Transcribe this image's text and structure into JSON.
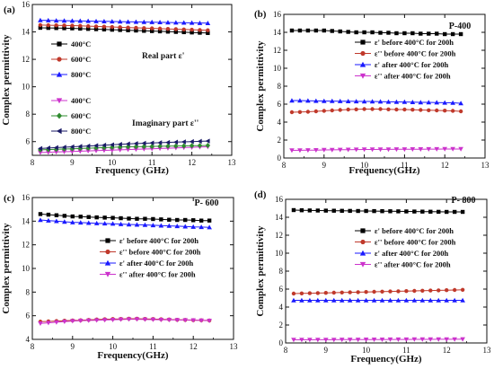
{
  "chart_data": [
    {
      "panel": "(a)",
      "type": "line",
      "xlabel": "Frequency (GHz)",
      "ylabel": "Complex permittivity",
      "xlim": [
        8,
        13
      ],
      "ylim": [
        5,
        16
      ],
      "xticks": [
        8,
        9,
        10,
        11,
        12,
        13
      ],
      "yticks": [
        6,
        8,
        10,
        12,
        14,
        16
      ],
      "x": [
        8.2,
        8.4,
        8.6,
        8.8,
        9.0,
        9.2,
        9.4,
        9.6,
        9.8,
        10.0,
        10.2,
        10.4,
        10.6,
        10.8,
        11.0,
        11.2,
        11.4,
        11.6,
        11.8,
        12.0,
        12.2,
        12.4
      ],
      "annotations": [
        "Real part ε'",
        "Imaginary part ε''"
      ],
      "series": [
        {
          "name": "400°C",
          "color": "#000000",
          "marker": "square",
          "values": [
            14.3,
            14.29,
            14.28,
            14.27,
            14.26,
            14.24,
            14.22,
            14.2,
            14.18,
            14.16,
            14.14,
            14.12,
            14.1,
            14.08,
            14.06,
            14.04,
            14.02,
            14.0,
            13.98,
            13.96,
            13.94,
            13.92
          ]
        },
        {
          "name": "600°C",
          "color": "#c0392b",
          "marker": "circle",
          "values": [
            14.5,
            14.49,
            14.48,
            14.47,
            14.46,
            14.44,
            14.42,
            14.4,
            14.38,
            14.36,
            14.34,
            14.32,
            14.3,
            14.28,
            14.26,
            14.24,
            14.22,
            14.2,
            14.18,
            14.16,
            14.14,
            14.12
          ]
        },
        {
          "name": "800°C",
          "color": "#1a1aff",
          "marker": "triangle-up",
          "values": [
            14.85,
            14.84,
            14.83,
            14.82,
            14.81,
            14.8,
            14.79,
            14.78,
            14.77,
            14.76,
            14.75,
            14.74,
            14.73,
            14.72,
            14.71,
            14.7,
            14.69,
            14.68,
            14.67,
            14.66,
            14.65,
            14.64
          ]
        },
        {
          "name": "400°C",
          "color": "#cc33cc",
          "marker": "triangle-down",
          "values": [
            5.2,
            5.22,
            5.24,
            5.26,
            5.28,
            5.3,
            5.32,
            5.34,
            5.36,
            5.38,
            5.4,
            5.42,
            5.44,
            5.46,
            5.48,
            5.5,
            5.52,
            5.54,
            5.56,
            5.58,
            5.6,
            5.62
          ]
        },
        {
          "name": "600°C",
          "color": "#2e8b2e",
          "marker": "diamond",
          "values": [
            5.4,
            5.42,
            5.44,
            5.46,
            5.48,
            5.5,
            5.52,
            5.54,
            5.56,
            5.58,
            5.6,
            5.62,
            5.63,
            5.64,
            5.65,
            5.66,
            5.67,
            5.68,
            5.69,
            5.7,
            5.71,
            5.72
          ]
        },
        {
          "name": "800°C",
          "color": "#1a1a66",
          "marker": "triangle-left",
          "values": [
            5.5,
            5.53,
            5.56,
            5.59,
            5.62,
            5.65,
            5.68,
            5.71,
            5.74,
            5.77,
            5.8,
            5.83,
            5.86,
            5.88,
            5.9,
            5.92,
            5.94,
            5.96,
            5.98,
            6.0,
            6.02,
            6.04
          ]
        }
      ]
    },
    {
      "panel": "(b)",
      "title": "P-400",
      "type": "line",
      "xlabel": "Frequency(GHz)",
      "ylabel": "Complex permittivity",
      "xlim": [
        8,
        13
      ],
      "ylim": [
        0,
        16
      ],
      "xticks": [
        8,
        9,
        10,
        11,
        12,
        13
      ],
      "yticks": [
        0,
        2,
        4,
        6,
        8,
        10,
        12,
        14,
        16
      ],
      "x": [
        8.2,
        8.4,
        8.6,
        8.8,
        9.0,
        9.2,
        9.4,
        9.6,
        9.8,
        10.0,
        10.2,
        10.4,
        10.6,
        10.8,
        11.0,
        11.2,
        11.4,
        11.6,
        11.8,
        12.0,
        12.2,
        12.4
      ],
      "series": [
        {
          "name": "ε' before 400°C for 200h",
          "color": "#000000",
          "marker": "square",
          "values": [
            14.2,
            14.2,
            14.2,
            14.2,
            14.2,
            14.15,
            14.1,
            14.05,
            14.0,
            14.0,
            14.0,
            13.95,
            13.95,
            13.9,
            13.9,
            13.9,
            13.85,
            13.85,
            13.85,
            13.8,
            13.8,
            13.8
          ]
        },
        {
          "name": "ε'' before 400°C for 200h",
          "color": "#c0392b",
          "marker": "circle",
          "values": [
            5.1,
            5.12,
            5.15,
            5.2,
            5.25,
            5.3,
            5.35,
            5.4,
            5.42,
            5.45,
            5.45,
            5.45,
            5.42,
            5.4,
            5.4,
            5.38,
            5.35,
            5.32,
            5.3,
            5.28,
            5.25,
            5.2
          ]
        },
        {
          "name": "ε' after 400°C for 200h",
          "color": "#1a1aff",
          "marker": "triangle-up",
          "values": [
            6.4,
            6.4,
            6.38,
            6.36,
            6.35,
            6.34,
            6.33,
            6.32,
            6.31,
            6.3,
            6.3,
            6.28,
            6.26,
            6.25,
            6.24,
            6.22,
            6.2,
            6.2,
            6.18,
            6.16,
            6.15,
            6.1
          ]
        },
        {
          "name": "ε'' after 400°C for 200h",
          "color": "#cc33cc",
          "marker": "triangle-down",
          "values": [
            0.85,
            0.86,
            0.87,
            0.88,
            0.9,
            0.91,
            0.92,
            0.93,
            0.94,
            0.95,
            0.95,
            0.96,
            0.96,
            0.97,
            0.97,
            0.98,
            0.98,
            0.99,
            0.99,
            1.0,
            1.0,
            1.0
          ]
        }
      ]
    },
    {
      "panel": "(c)",
      "title": "P- 600",
      "type": "line",
      "xlabel": "Frequency(GHz)",
      "ylabel": "Complex permittivity",
      "xlim": [
        8,
        13
      ],
      "ylim": [
        4,
        16
      ],
      "xticks": [
        8,
        9,
        10,
        11,
        12,
        13
      ],
      "yticks": [
        4,
        6,
        8,
        10,
        12,
        14,
        16
      ],
      "x": [
        8.2,
        8.4,
        8.6,
        8.8,
        9.0,
        9.2,
        9.4,
        9.6,
        9.8,
        10.0,
        10.2,
        10.4,
        10.6,
        10.8,
        11.0,
        11.2,
        11.4,
        11.6,
        11.8,
        12.0,
        12.2,
        12.4
      ],
      "series": [
        {
          "name": "ε' before 400°C for 200h",
          "color": "#000000",
          "marker": "square",
          "values": [
            14.6,
            14.55,
            14.5,
            14.45,
            14.4,
            14.38,
            14.35,
            14.32,
            14.3,
            14.28,
            14.25,
            14.22,
            14.2,
            14.2,
            14.18,
            14.15,
            14.12,
            14.1,
            14.1,
            14.08,
            14.05,
            14.05
          ]
        },
        {
          "name": "ε'' before 400°C for 200h",
          "color": "#c0392b",
          "marker": "circle",
          "values": [
            5.5,
            5.52,
            5.55,
            5.58,
            5.6,
            5.62,
            5.65,
            5.68,
            5.7,
            5.72,
            5.73,
            5.75,
            5.75,
            5.73,
            5.72,
            5.7,
            5.68,
            5.66,
            5.65,
            5.63,
            5.62,
            5.6
          ]
        },
        {
          "name": "ε' after 400°C for 200h",
          "color": "#1a1aff",
          "marker": "triangle-up",
          "values": [
            14.1,
            14.05,
            14.0,
            13.95,
            13.9,
            13.88,
            13.85,
            13.82,
            13.8,
            13.78,
            13.75,
            13.72,
            13.7,
            13.68,
            13.65,
            13.62,
            13.6,
            13.58,
            13.55,
            13.52,
            13.5,
            13.48
          ]
        },
        {
          "name": "ε'' after 400°C for 200h",
          "color": "#cc33cc",
          "marker": "triangle-down",
          "values": [
            5.35,
            5.4,
            5.45,
            5.5,
            5.55,
            5.58,
            5.6,
            5.62,
            5.64,
            5.66,
            5.68,
            5.7,
            5.7,
            5.68,
            5.67,
            5.66,
            5.65,
            5.64,
            5.63,
            5.62,
            5.6,
            5.58
          ]
        }
      ]
    },
    {
      "panel": "(d)",
      "title": "P- 800",
      "type": "line",
      "xlabel": "Frequency(GHz)",
      "ylabel": "Complex permittivity",
      "xlim": [
        8,
        13
      ],
      "ylim": [
        0,
        16
      ],
      "xticks": [
        8,
        9,
        10,
        11,
        12,
        13
      ],
      "yticks": [
        0,
        2,
        4,
        6,
        8,
        10,
        12,
        14,
        16
      ],
      "x": [
        8.2,
        8.4,
        8.6,
        8.8,
        9.0,
        9.2,
        9.4,
        9.6,
        9.8,
        10.0,
        10.2,
        10.4,
        10.6,
        10.8,
        11.0,
        11.2,
        11.4,
        11.6,
        11.8,
        12.0,
        12.2,
        12.4
      ],
      "series": [
        {
          "name": "ε' before 400°C for 200h",
          "color": "#000000",
          "marker": "square",
          "values": [
            14.8,
            14.78,
            14.76,
            14.75,
            14.74,
            14.73,
            14.72,
            14.71,
            14.7,
            14.7,
            14.69,
            14.68,
            14.67,
            14.66,
            14.65,
            14.64,
            14.63,
            14.62,
            14.61,
            14.6,
            14.6,
            14.6
          ]
        },
        {
          "name": "ε'' before 400°C for 200h",
          "color": "#c0392b",
          "marker": "circle",
          "values": [
            5.5,
            5.52,
            5.54,
            5.56,
            5.58,
            5.6,
            5.62,
            5.64,
            5.66,
            5.68,
            5.7,
            5.72,
            5.74,
            5.76,
            5.78,
            5.8,
            5.82,
            5.84,
            5.86,
            5.88,
            5.9,
            5.92
          ]
        },
        {
          "name": "ε' after 400°C for 200h",
          "color": "#1a1aff",
          "marker": "triangle-up",
          "values": [
            4.75,
            4.75,
            4.75,
            4.75,
            4.75,
            4.75,
            4.75,
            4.75,
            4.75,
            4.75,
            4.75,
            4.75,
            4.75,
            4.75,
            4.75,
            4.75,
            4.75,
            4.75,
            4.75,
            4.75,
            4.75,
            4.75
          ]
        },
        {
          "name": "ε'' after 400°C for 200h",
          "color": "#cc33cc",
          "marker": "triangle-down",
          "values": [
            0.35,
            0.35,
            0.35,
            0.36,
            0.36,
            0.36,
            0.37,
            0.37,
            0.37,
            0.38,
            0.38,
            0.38,
            0.39,
            0.39,
            0.39,
            0.4,
            0.4,
            0.4,
            0.41,
            0.41,
            0.41,
            0.42
          ]
        }
      ]
    }
  ]
}
